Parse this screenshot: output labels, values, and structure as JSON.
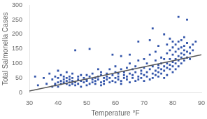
{
  "chart_data": {
    "type": "scatter",
    "xlabel": "Temperature °F",
    "ylabel": "Total Salmonella Cases",
    "xlim": [
      30,
      90
    ],
    "ylim": [
      0,
      300
    ],
    "xticks": [
      30,
      40,
      50,
      60,
      70,
      80,
      90
    ],
    "yticks": [
      0,
      50,
      100,
      150,
      200,
      250,
      300
    ],
    "grid": false,
    "series": [
      {
        "type": "scatter",
        "color": "#3355aa",
        "marker": "square",
        "x": [
          32,
          33,
          35,
          36,
          37,
          38,
          38,
          39,
          39,
          39,
          40,
          40,
          40,
          40,
          41,
          41,
          41,
          42,
          42,
          42,
          43,
          43,
          43,
          43,
          44,
          44,
          44,
          44,
          45,
          45,
          45,
          45,
          46,
          46,
          46,
          47,
          47,
          47,
          48,
          48,
          48,
          49,
          49,
          50,
          50,
          50,
          50,
          51,
          51,
          51,
          52,
          52,
          52,
          53,
          53,
          53,
          54,
          54,
          54,
          55,
          55,
          55,
          55,
          56,
          56,
          56,
          57,
          57,
          57,
          58,
          58,
          58,
          59,
          59,
          59,
          60,
          60,
          60,
          60,
          61,
          61,
          61,
          62,
          62,
          62,
          62,
          63,
          63,
          63,
          64,
          64,
          64,
          65,
          65,
          65,
          65,
          66,
          66,
          66,
          67,
          67,
          67,
          68,
          68,
          68,
          68,
          69,
          69,
          69,
          70,
          70,
          70,
          70,
          71,
          71,
          71,
          72,
          72,
          72,
          72,
          73,
          73,
          73,
          73,
          74,
          74,
          74,
          74,
          75,
          75,
          75,
          75,
          75,
          76,
          76,
          76,
          76,
          77,
          77,
          77,
          77,
          77,
          78,
          78,
          78,
          78,
          78,
          79,
          79,
          79,
          79,
          79,
          80,
          80,
          80,
          80,
          80,
          80,
          81,
          81,
          81,
          81,
          81,
          82,
          82,
          82,
          82,
          82,
          82,
          83,
          83,
          83,
          83,
          83,
          84,
          84,
          84,
          84,
          84,
          85,
          85,
          85,
          85,
          86,
          86,
          86,
          87,
          87,
          88
        ],
        "values": [
          55,
          25,
          50,
          30,
          65,
          20,
          45,
          30,
          55,
          25,
          35,
          50,
          75,
          20,
          40,
          60,
          30,
          45,
          35,
          55,
          30,
          50,
          40,
          70,
          25,
          45,
          35,
          55,
          30,
          50,
          65,
          40,
          145,
          35,
          25,
          45,
          55,
          30,
          40,
          60,
          20,
          50,
          35,
          45,
          60,
          25,
          40,
          55,
          30,
          150,
          45,
          35,
          65,
          50,
          40,
          30,
          55,
          45,
          80,
          60,
          35,
          25,
          70,
          50,
          40,
          30,
          65,
          45,
          55,
          35,
          80,
          50,
          60,
          40,
          130,
          50,
          70,
          35,
          90,
          55,
          45,
          65,
          40,
          80,
          30,
          125,
          60,
          50,
          70,
          45,
          55,
          85,
          35,
          65,
          100,
          130,
          50,
          60,
          80,
          40,
          70,
          90,
          55,
          45,
          110,
          175,
          65,
          75,
          50,
          60,
          85,
          40,
          115,
          70,
          55,
          100,
          45,
          80,
          130,
          180,
          65,
          90,
          50,
          220,
          75,
          60,
          110,
          140,
          85,
          70,
          95,
          55,
          160,
          80,
          65,
          120,
          100,
          90,
          75,
          115,
          50,
          200,
          85,
          100,
          60,
          135,
          165,
          95,
          80,
          115,
          145,
          185,
          105,
          90,
          70,
          130,
          155,
          175,
          115,
          100,
          80,
          140,
          165,
          125,
          110,
          90,
          150,
          175,
          260,
          135,
          120,
          100,
          155,
          180,
          145,
          130,
          110,
          160,
          190,
          250,
          140,
          120,
          170,
          155,
          135,
          115,
          165,
          145,
          175
        ]
      },
      {
        "type": "line",
        "color": "#555555",
        "line_style": "solid",
        "x": [
          30,
          90
        ],
        "values": [
          5,
          130
        ]
      }
    ]
  }
}
